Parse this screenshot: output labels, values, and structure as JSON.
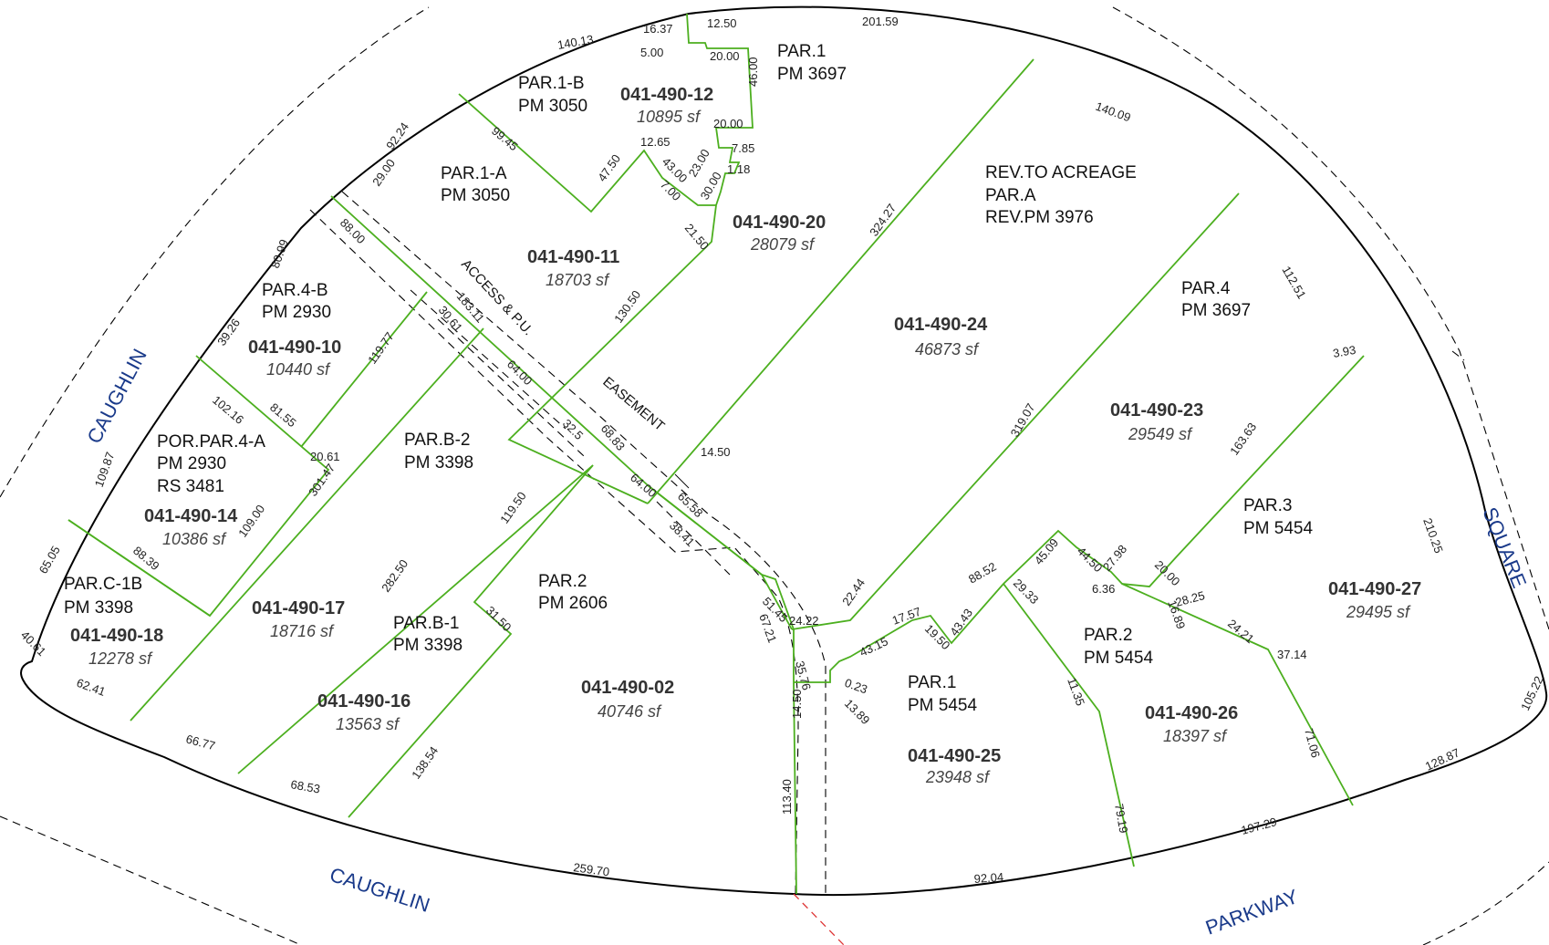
{
  "streets": {
    "caughlin_west": "CAUGHLIN",
    "caughlin_south": "CAUGHLIN",
    "parkway": "PARKWAY",
    "square": "SQUARE"
  },
  "easement": {
    "line1": "ACCESS & P.U.",
    "line2": "EASEMENT"
  },
  "parcels": [
    {
      "id": "p12",
      "desc": [
        "PAR.1-B",
        "PM 3050"
      ],
      "apn": "041-490-12",
      "area": "10895 sf"
    },
    {
      "id": "p11",
      "desc": [
        "PAR.1-A",
        "PM 3050"
      ],
      "apn": "041-490-11",
      "area": "18703 sf"
    },
    {
      "id": "p20",
      "desc": [
        "PAR.1",
        "PM 3697"
      ],
      "apn": "041-490-20",
      "area": "28079 sf"
    },
    {
      "id": "p24",
      "desc": [
        "REV.TO ACREAGE",
        "PAR.A",
        "REV.PM 3976"
      ],
      "apn": "041-490-24",
      "area": "46873 sf"
    },
    {
      "id": "p23",
      "desc": [
        "PAR.4",
        "PM 3697"
      ],
      "apn": "041-490-23",
      "area": "29549 sf"
    },
    {
      "id": "p10",
      "desc": [
        "PAR.4-B",
        "PM 2930"
      ],
      "apn": "041-490-10",
      "area": "10440 sf"
    },
    {
      "id": "p14",
      "desc": [
        "POR.PAR.4-A",
        "PM 2930",
        "RS 3481"
      ],
      "apn": "041-490-14",
      "area": "10386 sf"
    },
    {
      "id": "p18",
      "desc": [
        "PAR.C-1B",
        "PM 3398"
      ],
      "apn": "041-490-18",
      "area": "12278 sf"
    },
    {
      "id": "p17",
      "desc": [
        "PAR.B-2",
        "PM 3398"
      ],
      "apn": "041-490-17",
      "area": "18716 sf"
    },
    {
      "id": "p16",
      "desc": [
        "PAR.B-1",
        "PM 3398"
      ],
      "apn": "041-490-16",
      "area": "13563 sf"
    },
    {
      "id": "p02",
      "desc": [
        "PAR.2",
        "PM 2606"
      ],
      "apn": "041-490-02",
      "area": "40746 sf"
    },
    {
      "id": "p25",
      "desc": [
        "PAR.1",
        "PM 5454"
      ],
      "apn": "041-490-25",
      "area": "23948 sf"
    },
    {
      "id": "p26",
      "desc": [
        "PAR.2",
        "PM 5454"
      ],
      "apn": "041-490-26",
      "area": "18397 sf"
    },
    {
      "id": "p27",
      "desc": [
        "PAR.3",
        "PM 5454"
      ],
      "apn": "041-490-27",
      "area": "29495 sf"
    }
  ],
  "dimensions": [
    "16.37",
    "12.50",
    "201.59",
    "140.13",
    "5.00",
    "20.00",
    "46.00",
    "20.00",
    "12.65",
    "7.85",
    "1.18",
    "43.00",
    "23.00",
    "7.00",
    "30.00",
    "47.50",
    "21.50",
    "99.45",
    "92.24",
    "29.00",
    "140.09",
    "324.27",
    "80.99",
    "88.00",
    "183.11",
    "30.61",
    "64.00",
    "119.77",
    "130.50",
    "39.26",
    "102.16",
    "81.55",
    "20.61",
    "32.5",
    "68.83",
    "64.00",
    "14.50",
    "109.87",
    "301.47",
    "282.50",
    "119.50",
    "65.58",
    "38.41",
    "319.07",
    "112.51",
    "3.93",
    "163.63",
    "210.25",
    "88.39",
    "109.00",
    "65.05",
    "40.61",
    "62.41",
    "66.77",
    "68.53",
    "259.70",
    "138.54",
    "31.50",
    "51.45",
    "67.21",
    "24.22",
    "22.44",
    "35.76",
    "14.50",
    "113.40",
    "0.23",
    "13.89",
    "43.15",
    "17.57",
    "19.50",
    "43.43",
    "88.52",
    "29.33",
    "45.09",
    "44.50",
    "27.98",
    "20.00",
    "6.36",
    "16.89",
    "28.25",
    "24.21",
    "37.14",
    "11.35",
    "79.19",
    "71.06",
    "92.04",
    "197.29",
    "128.87",
    "105.22",
    "40.61"
  ]
}
